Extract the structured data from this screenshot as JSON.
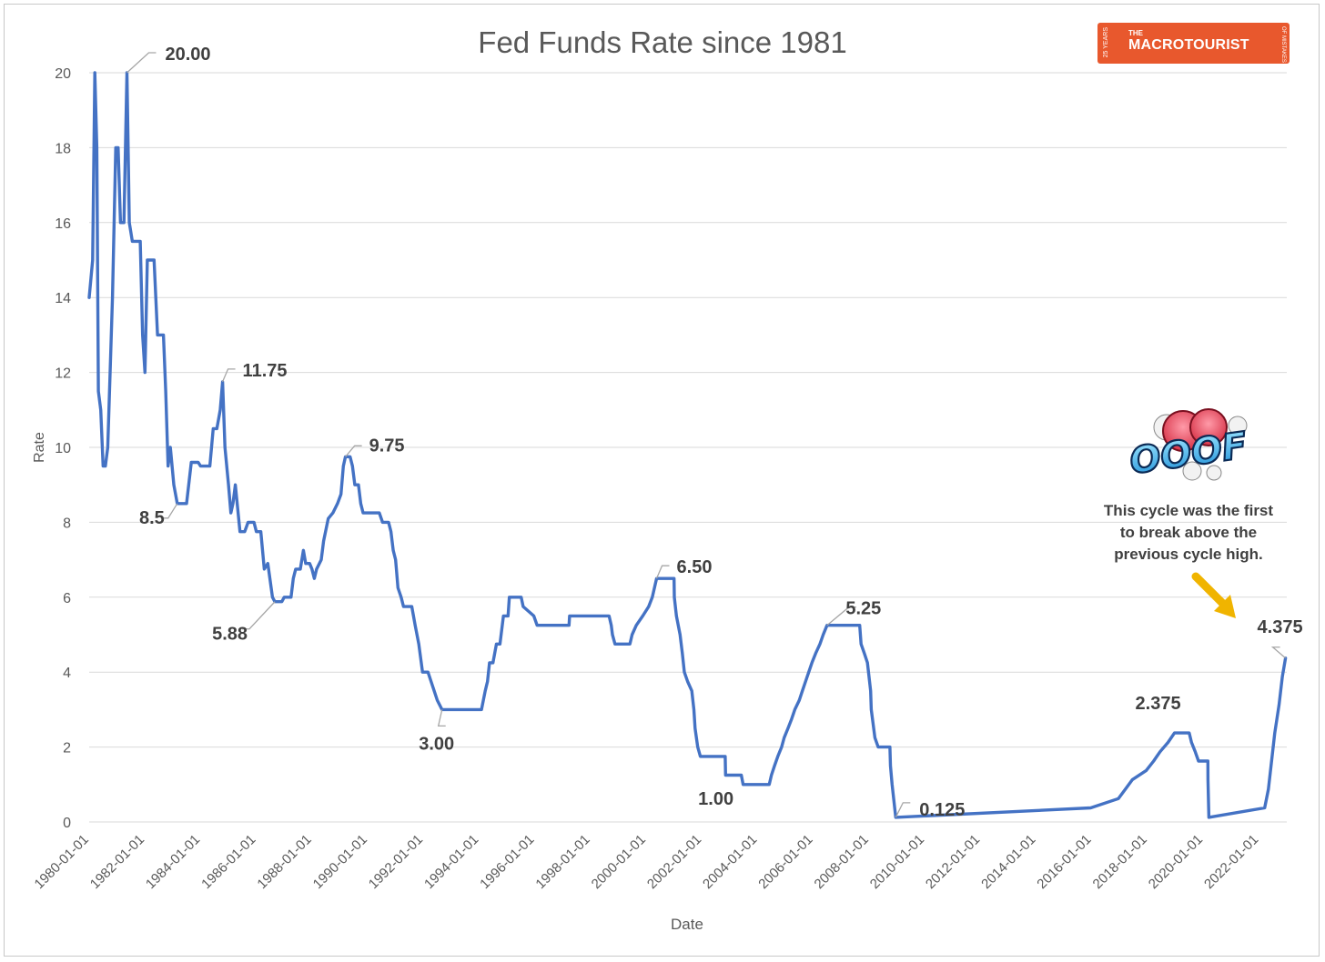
{
  "chart_data": {
    "type": "line",
    "title": "Fed Funds Rate since 1981",
    "xlabel": "Date",
    "ylabel": "Rate",
    "ylim": [
      0,
      20
    ],
    "yticks": [
      0,
      2,
      4,
      6,
      8,
      10,
      12,
      14,
      16,
      18,
      20
    ],
    "xlim": [
      "1980-01-01",
      "2022-12-31"
    ],
    "xticks": [
      "1980-01-01",
      "1982-01-01",
      "1984-01-01",
      "1986-01-01",
      "1988-01-01",
      "1990-01-01",
      "1992-01-01",
      "1994-01-01",
      "1996-01-01",
      "1998-01-01",
      "2000-01-01",
      "2002-01-01",
      "2004-01-01",
      "2006-01-01",
      "2008-01-01",
      "2010-01-01",
      "2012-01-01",
      "2014-01-01",
      "2016-01-01",
      "2018-01-01",
      "2020-01-01",
      "2022-01-01"
    ],
    "grid": true,
    "series": [
      {
        "color": "#4472c4",
        "points": [
          [
            "1980-01-01",
            14.0
          ],
          [
            "1980-02-15",
            15.0
          ],
          [
            "1980-03-15",
            20.0
          ],
          [
            "1980-04-10",
            18.0
          ],
          [
            "1980-05-01",
            11.5
          ],
          [
            "1980-06-01",
            11.0
          ],
          [
            "1980-07-01",
            9.5
          ],
          [
            "1980-08-01",
            9.5
          ],
          [
            "1980-09-01",
            10.0
          ],
          [
            "1980-10-01",
            12.0
          ],
          [
            "1980-11-01",
            14.0
          ],
          [
            "1980-12-15",
            18.0
          ],
          [
            "1981-01-15",
            18.0
          ],
          [
            "1981-02-15",
            16.0
          ],
          [
            "1981-04-01",
            16.0
          ],
          [
            "1981-05-10",
            20.0
          ],
          [
            "1981-06-10",
            16.0
          ],
          [
            "1981-07-20",
            15.5
          ],
          [
            "1981-11-01",
            15.5
          ],
          [
            "1981-12-01",
            13.0
          ],
          [
            "1982-01-01",
            12.0
          ],
          [
            "1982-02-01",
            15.0
          ],
          [
            "1982-05-01",
            15.0
          ],
          [
            "1982-06-15",
            13.0
          ],
          [
            "1982-09-01",
            13.0
          ],
          [
            "1982-10-01",
            11.5
          ],
          [
            "1982-11-01",
            9.5
          ],
          [
            "1982-12-01",
            10.0
          ],
          [
            "1983-01-15",
            9.0
          ],
          [
            "1983-03-01",
            8.5
          ],
          [
            "1983-07-01",
            8.5
          ],
          [
            "1983-09-01",
            9.6
          ],
          [
            "1983-12-01",
            9.6
          ],
          [
            "1984-01-01",
            9.5
          ],
          [
            "1984-05-01",
            9.5
          ],
          [
            "1984-06-15",
            10.5
          ],
          [
            "1984-08-01",
            10.5
          ],
          [
            "1984-09-15",
            11.0
          ],
          [
            "1984-10-15",
            11.75
          ],
          [
            "1984-11-15",
            10.0
          ],
          [
            "1985-01-01",
            9.0
          ],
          [
            "1985-02-01",
            8.25
          ],
          [
            "1985-03-01",
            8.5
          ],
          [
            "1985-04-01",
            9.0
          ],
          [
            "1985-06-01",
            7.75
          ],
          [
            "1985-08-01",
            7.75
          ],
          [
            "1985-09-15",
            8.0
          ],
          [
            "1985-12-01",
            8.0
          ],
          [
            "1986-01-01",
            7.75
          ],
          [
            "1986-03-01",
            7.75
          ],
          [
            "1986-04-15",
            6.75
          ],
          [
            "1986-06-01",
            6.9
          ],
          [
            "1986-08-01",
            6.0
          ],
          [
            "1986-09-01",
            5.88
          ],
          [
            "1986-12-01",
            5.88
          ],
          [
            "1987-01-01",
            6.0
          ],
          [
            "1987-04-01",
            6.0
          ],
          [
            "1987-05-01",
            6.5
          ],
          [
            "1987-06-01",
            6.75
          ],
          [
            "1987-08-01",
            6.75
          ],
          [
            "1987-09-10",
            7.25
          ],
          [
            "1987-10-10",
            6.9
          ],
          [
            "1987-12-01",
            6.9
          ],
          [
            "1988-01-01",
            6.75
          ],
          [
            "1988-02-01",
            6.5
          ],
          [
            "1988-03-01",
            6.75
          ],
          [
            "1988-05-01",
            7.0
          ],
          [
            "1988-06-01",
            7.5
          ],
          [
            "1988-08-01",
            8.1
          ],
          [
            "1988-10-01",
            8.25
          ],
          [
            "1988-12-01",
            8.5
          ],
          [
            "1989-01-15",
            8.75
          ],
          [
            "1989-02-15",
            9.5
          ],
          [
            "1989-03-15",
            9.75
          ],
          [
            "1989-05-15",
            9.75
          ],
          [
            "1989-06-15",
            9.5
          ],
          [
            "1989-07-15",
            9.0
          ],
          [
            "1989-09-01",
            9.0
          ],
          [
            "1989-10-01",
            8.5
          ],
          [
            "1989-11-01",
            8.25
          ],
          [
            "1990-06-01",
            8.25
          ],
          [
            "1990-07-15",
            8.0
          ],
          [
            "1990-10-01",
            8.0
          ],
          [
            "1990-11-01",
            7.75
          ],
          [
            "1990-12-01",
            7.25
          ],
          [
            "1991-01-01",
            7.0
          ],
          [
            "1991-02-01",
            6.25
          ],
          [
            "1991-03-15",
            6.0
          ],
          [
            "1991-04-15",
            5.75
          ],
          [
            "1991-08-01",
            5.75
          ],
          [
            "1991-09-15",
            5.25
          ],
          [
            "1991-11-01",
            4.75
          ],
          [
            "1991-12-20",
            4.0
          ],
          [
            "1992-03-01",
            4.0
          ],
          [
            "1992-04-10",
            3.75
          ],
          [
            "1992-07-01",
            3.25
          ],
          [
            "1992-09-01",
            3.0
          ],
          [
            "1994-02-01",
            3.0
          ],
          [
            "1994-03-22",
            3.5
          ],
          [
            "1994-04-20",
            3.75
          ],
          [
            "1994-05-17",
            4.25
          ],
          [
            "1994-07-01",
            4.25
          ],
          [
            "1994-08-16",
            4.75
          ],
          [
            "1994-10-01",
            4.75
          ],
          [
            "1994-11-15",
            5.5
          ],
          [
            "1995-01-15",
            5.5
          ],
          [
            "1995-02-01",
            6.0
          ],
          [
            "1995-07-06",
            6.0
          ],
          [
            "1995-08-01",
            5.75
          ],
          [
            "1995-12-19",
            5.5
          ],
          [
            "1996-01-31",
            5.25
          ],
          [
            "1997-03-25",
            5.25
          ],
          [
            "1997-04-01",
            5.5
          ],
          [
            "1998-09-01",
            5.5
          ],
          [
            "1998-09-29",
            5.25
          ],
          [
            "1998-10-15",
            5.0
          ],
          [
            "1998-11-17",
            4.75
          ],
          [
            "1999-06-01",
            4.75
          ],
          [
            "1999-06-30",
            5.0
          ],
          [
            "1999-08-24",
            5.25
          ],
          [
            "1999-11-16",
            5.5
          ],
          [
            "2000-02-02",
            5.75
          ],
          [
            "2000-03-21",
            6.0
          ],
          [
            "2000-05-16",
            6.5
          ],
          [
            "2000-12-31",
            6.5
          ],
          [
            "2001-01-03",
            6.0
          ],
          [
            "2001-01-31",
            5.5
          ],
          [
            "2001-03-20",
            5.0
          ],
          [
            "2001-04-18",
            4.5
          ],
          [
            "2001-05-15",
            4.0
          ],
          [
            "2001-06-27",
            3.75
          ],
          [
            "2001-08-21",
            3.5
          ],
          [
            "2001-09-17",
            3.0
          ],
          [
            "2001-10-02",
            2.5
          ],
          [
            "2001-11-06",
            2.0
          ],
          [
            "2001-12-11",
            1.75
          ],
          [
            "2002-11-01",
            1.75
          ],
          [
            "2002-11-06",
            1.25
          ],
          [
            "2003-06-01",
            1.25
          ],
          [
            "2003-06-25",
            1.0
          ],
          [
            "2004-06-01",
            1.0
          ],
          [
            "2004-06-30",
            1.25
          ],
          [
            "2004-08-10",
            1.5
          ],
          [
            "2004-09-21",
            1.75
          ],
          [
            "2004-11-10",
            2.0
          ],
          [
            "2004-12-14",
            2.25
          ],
          [
            "2005-02-02",
            2.5
          ],
          [
            "2005-03-22",
            2.75
          ],
          [
            "2005-05-03",
            3.0
          ],
          [
            "2005-06-30",
            3.25
          ],
          [
            "2005-08-09",
            3.5
          ],
          [
            "2005-09-20",
            3.75
          ],
          [
            "2005-11-01",
            4.0
          ],
          [
            "2005-12-13",
            4.25
          ],
          [
            "2006-01-31",
            4.5
          ],
          [
            "2006-03-28",
            4.75
          ],
          [
            "2006-05-10",
            5.0
          ],
          [
            "2006-06-29",
            5.25
          ],
          [
            "2007-09-01",
            5.25
          ],
          [
            "2007-09-18",
            4.75
          ],
          [
            "2007-10-31",
            4.5
          ],
          [
            "2007-12-11",
            4.25
          ],
          [
            "2008-01-22",
            3.5
          ],
          [
            "2008-01-30",
            3.0
          ],
          [
            "2008-03-18",
            2.25
          ],
          [
            "2008-04-30",
            2.0
          ],
          [
            "2008-10-01",
            2.0
          ],
          [
            "2008-10-08",
            1.5
          ],
          [
            "2008-10-29",
            1.0
          ],
          [
            "2008-12-16",
            0.125
          ],
          [
            "2015-12-16",
            0.375
          ],
          [
            "2016-12-14",
            0.625
          ],
          [
            "2017-03-15",
            0.875
          ],
          [
            "2017-06-14",
            1.125
          ],
          [
            "2017-12-13",
            1.375
          ],
          [
            "2018-03-21",
            1.625
          ],
          [
            "2018-06-13",
            1.875
          ],
          [
            "2018-09-26",
            2.125
          ],
          [
            "2018-12-19",
            2.375
          ],
          [
            "2019-07-01",
            2.375
          ],
          [
            "2019-07-31",
            2.125
          ],
          [
            "2019-09-18",
            1.875
          ],
          [
            "2019-10-30",
            1.625
          ],
          [
            "2020-03-01",
            1.625
          ],
          [
            "2020-03-03",
            1.125
          ],
          [
            "2020-03-15",
            0.125
          ],
          [
            "2022-03-16",
            0.375
          ],
          [
            "2022-05-04",
            0.875
          ],
          [
            "2022-06-15",
            1.625
          ],
          [
            "2022-07-27",
            2.375
          ],
          [
            "2022-09-21",
            3.125
          ],
          [
            "2022-11-02",
            3.875
          ],
          [
            "2022-12-14",
            4.375
          ]
        ]
      }
    ],
    "annotations": [
      {
        "text": "20.00",
        "at": [
          "1981-05-10",
          20.0
        ]
      },
      {
        "text": "11.75",
        "at": [
          "1984-10-15",
          11.75
        ]
      },
      {
        "text": "9.75",
        "at": [
          "1989-03-15",
          9.75
        ]
      },
      {
        "text": "8.5",
        "at": [
          "1983-03-01",
          8.5
        ]
      },
      {
        "text": "5.88",
        "at": [
          "1986-09-01",
          5.88
        ]
      },
      {
        "text": "3.00",
        "at": [
          "1992-09-01",
          3.0
        ]
      },
      {
        "text": "6.50",
        "at": [
          "2000-05-16",
          6.5
        ]
      },
      {
        "text": "1.00",
        "at": [
          "2003-06-25",
          1.0
        ]
      },
      {
        "text": "5.25",
        "at": [
          "2006-06-29",
          5.25
        ]
      },
      {
        "text": "0.125",
        "at": [
          "2008-12-16",
          0.125
        ]
      },
      {
        "text": "2.375",
        "at": [
          "2018-12-19",
          2.375
        ]
      },
      {
        "text": "4.375",
        "at": [
          "2022-12-14",
          4.375
        ]
      }
    ],
    "callout": {
      "lines": [
        "This cycle was the first",
        "to break above the",
        "previous cycle high."
      ],
      "sticker": "OOOF"
    }
  },
  "logo": {
    "the": "THE",
    "brand_bold": "MACRO",
    "brand_rest": "TOURIST",
    "badge": "25 YEARS",
    "side": "OF MISTAKES"
  }
}
